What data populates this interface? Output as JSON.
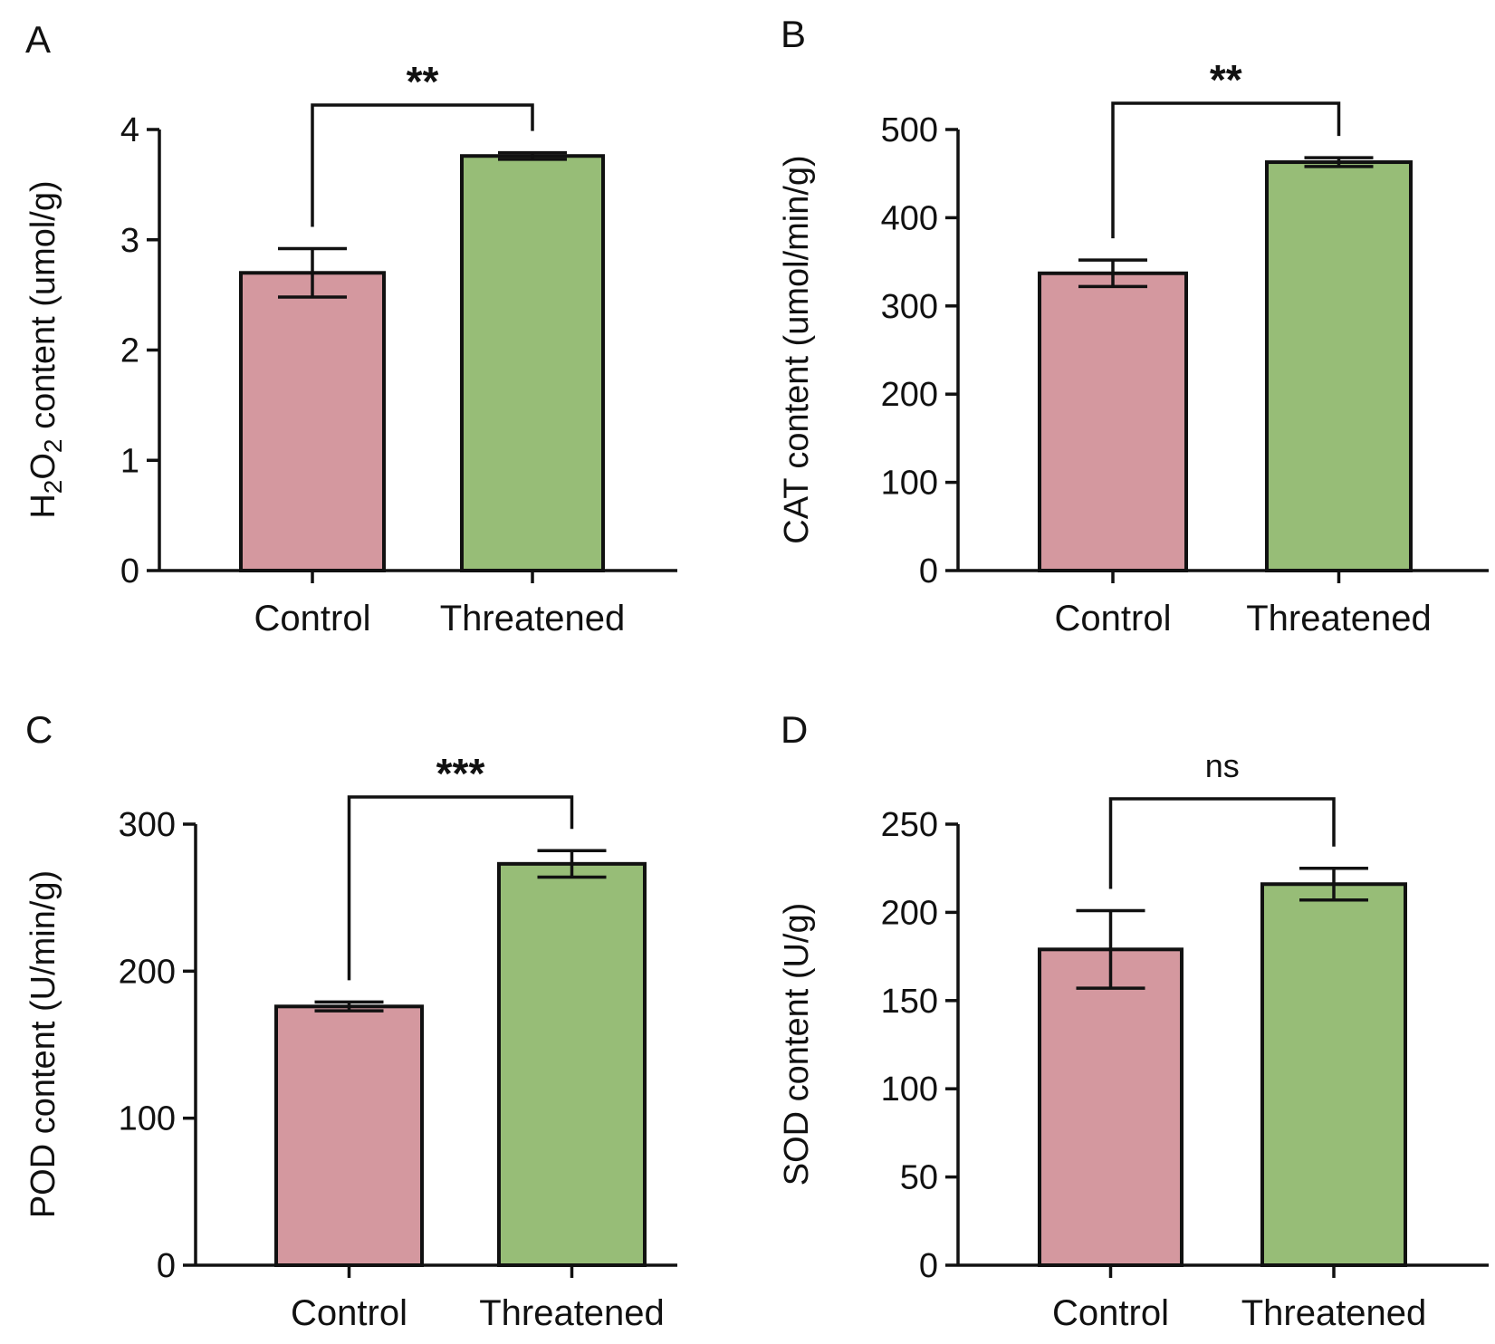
{
  "colors": {
    "control": "#d4989f",
    "threatened": "#97bd77",
    "ink": "#111111"
  },
  "chart_data": [
    {
      "type": "bar",
      "panel": "A",
      "categories": [
        "Control",
        "Threatened"
      ],
      "values": [
        2.7,
        3.76
      ],
      "errors": [
        0.22,
        0.03
      ],
      "ylabel_parts": [
        {
          "t": "H",
          "sub": false
        },
        {
          "t": "2",
          "sub": true
        },
        {
          "t": "O",
          "sub": false
        },
        {
          "t": "2",
          "sub": true
        },
        {
          "t": " content (umol/g)",
          "sub": false
        }
      ],
      "ylim": [
        0,
        4
      ],
      "yticks": [
        0,
        1,
        2,
        3,
        4
      ],
      "significance": "**"
    },
    {
      "type": "bar",
      "panel": "B",
      "categories": [
        "Control",
        "Threatened"
      ],
      "values": [
        337,
        463
      ],
      "errors": [
        15,
        5
      ],
      "ylabel_parts": [
        {
          "t": "CAT content (umol/min/g)",
          "sub": false
        }
      ],
      "ylim": [
        0,
        500
      ],
      "yticks": [
        0,
        100,
        200,
        300,
        400,
        500
      ],
      "significance": "**"
    },
    {
      "type": "bar",
      "panel": "C",
      "categories": [
        "Control",
        "Threatened"
      ],
      "values": [
        176,
        273
      ],
      "errors": [
        3,
        9
      ],
      "ylabel_parts": [
        {
          "t": "POD content (U/min/g)",
          "sub": false
        }
      ],
      "ylim": [
        0,
        300
      ],
      "yticks": [
        0,
        100,
        200,
        300
      ],
      "significance": "***"
    },
    {
      "type": "bar",
      "panel": "D",
      "categories": [
        "Control",
        "Threatened"
      ],
      "values": [
        179,
        216
      ],
      "errors": [
        22,
        9
      ],
      "ylabel_parts": [
        {
          "t": "SOD content (U/g)",
          "sub": false
        }
      ],
      "ylim": [
        0,
        250
      ],
      "yticks": [
        0,
        50,
        100,
        150,
        200,
        250
      ],
      "significance": "ns"
    }
  ]
}
